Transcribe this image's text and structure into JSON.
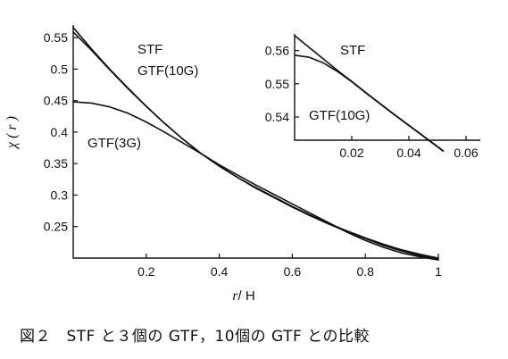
{
  "chart_data": [
    {
      "type": "line",
      "xlabel": "r",
      "xlabel_unit": "/ H",
      "ylabel": "χ ( r )",
      "xlim": [
        0,
        1
      ],
      "ylim": [
        0.2,
        0.57
      ],
      "x_ticks": [
        0.2,
        0.4,
        0.6,
        0.8,
        1
      ],
      "x_tick_labels": [
        "0.2",
        "0.4",
        "0.6",
        "0.8",
        "1"
      ],
      "y_ticks": [
        0.25,
        0.3,
        0.35,
        0.4,
        0.45,
        0.5,
        0.55
      ],
      "y_tick_labels": [
        "0.25",
        "0.3",
        "0.35",
        "0.4",
        "0.45",
        "0.5",
        "0.55"
      ],
      "series": [
        {
          "name": "STF",
          "x": [
            0,
            0.05,
            0.1,
            0.15,
            0.2,
            0.25,
            0.3,
            0.35,
            0.4,
            0.45,
            0.5,
            0.55,
            0.6,
            0.65,
            0.7,
            0.75,
            0.8,
            0.85,
            0.9,
            0.95,
            1.0
          ],
          "y": [
            0.566,
            0.532,
            0.5,
            0.47,
            0.441,
            0.414,
            0.389,
            0.366,
            0.346,
            0.328,
            0.312,
            0.297,
            0.282,
            0.268,
            0.255,
            0.243,
            0.232,
            0.222,
            0.213,
            0.206,
            0.2
          ]
        },
        {
          "name": "GTF(10G)",
          "x": [
            0,
            0.05,
            0.1,
            0.15,
            0.2,
            0.25,
            0.3,
            0.35,
            0.4,
            0.45,
            0.5,
            0.55,
            0.6,
            0.65,
            0.7,
            0.75,
            0.8,
            0.85,
            0.9,
            0.95,
            1.0
          ],
          "y": [
            0.559,
            0.53,
            0.499,
            0.469,
            0.441,
            0.414,
            0.389,
            0.366,
            0.346,
            0.328,
            0.311,
            0.296,
            0.281,
            0.267,
            0.254,
            0.242,
            0.231,
            0.22,
            0.211,
            0.204,
            0.198
          ]
        },
        {
          "name": "GTF(3G)",
          "x": [
            0,
            0.05,
            0.1,
            0.15,
            0.2,
            0.25,
            0.3,
            0.35,
            0.4,
            0.45,
            0.5,
            0.55,
            0.6,
            0.65,
            0.7,
            0.75,
            0.8,
            0.85,
            0.9,
            0.95,
            1.0
          ],
          "y": [
            0.448,
            0.446,
            0.44,
            0.43,
            0.416,
            0.4,
            0.383,
            0.366,
            0.348,
            0.332,
            0.316,
            0.301,
            0.286,
            0.271,
            0.256,
            0.241,
            0.228,
            0.217,
            0.208,
            0.202,
            0.197
          ]
        }
      ]
    },
    {
      "type": "line",
      "inset": true,
      "xlim": [
        0,
        0.065
      ],
      "ylim": [
        0.533,
        0.565
      ],
      "x_ticks": [
        0.02,
        0.04,
        0.06
      ],
      "x_tick_labels": [
        "0.02",
        "0.04",
        "0.06"
      ],
      "y_ticks": [
        0.54,
        0.55,
        0.56
      ],
      "y_tick_labels": [
        "0.54",
        "0.55",
        "0.56"
      ],
      "series": [
        {
          "name": "STF",
          "x": [
            0,
            0.005,
            0.01,
            0.015,
            0.02,
            0.025,
            0.03,
            0.035,
            0.04,
            0.045,
            0.05,
            0.052
          ],
          "y": [
            0.5645,
            0.561,
            0.5575,
            0.554,
            0.5507,
            0.5473,
            0.544,
            0.5407,
            0.5375,
            0.5343,
            0.5311,
            0.5298
          ]
        },
        {
          "name": "GTF(10G)",
          "x": [
            0,
            0.005,
            0.01,
            0.015,
            0.02,
            0.025,
            0.03,
            0.035,
            0.04,
            0.045,
            0.05,
            0.052
          ],
          "y": [
            0.5586,
            0.558,
            0.5563,
            0.5537,
            0.5506,
            0.5472,
            0.5439,
            0.5406,
            0.5374,
            0.5342,
            0.531,
            0.5297
          ]
        }
      ]
    }
  ],
  "caption": "図２　STF と３個の GTF，10個の GTF との比較"
}
